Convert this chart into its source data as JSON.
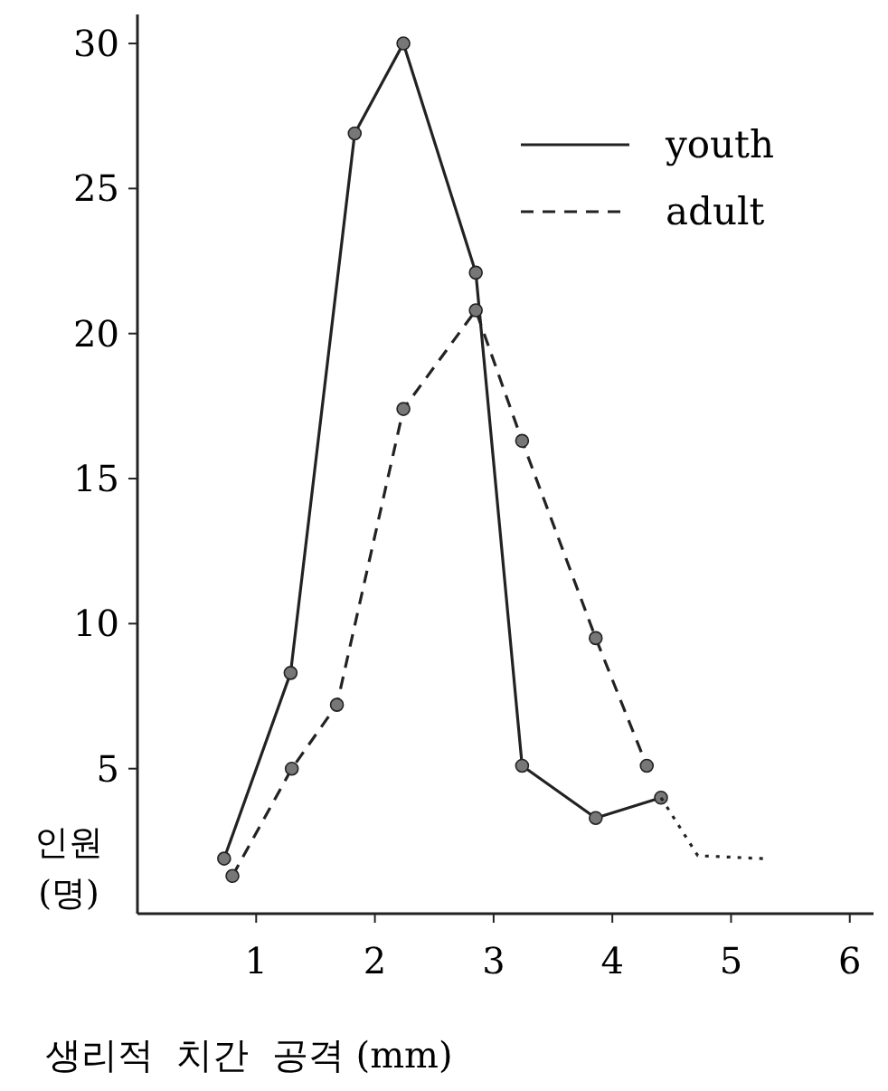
{
  "chart_data": {
    "type": "line",
    "xlabel": "생리적  치간  공격 (mm)",
    "ylabel": "인원 (명)",
    "xlim": [
      0,
      6.2
    ],
    "ylim": [
      0,
      31
    ],
    "xticks": [
      1,
      2,
      3,
      4,
      5,
      6
    ],
    "yticks": [
      5,
      10,
      15,
      20,
      25,
      30
    ],
    "legend": "top right",
    "marker": "circle",
    "grid": false,
    "series": [
      {
        "name": "youth",
        "color": "#222222",
        "line_style": "solid",
        "x": [
          0.73,
          1.29,
          1.83,
          2.24,
          2.85,
          3.24,
          3.86,
          4.41
        ],
        "values": [
          1.9,
          8.3,
          26.9,
          30,
          22.1,
          5.1,
          3.3,
          4
        ]
      },
      {
        "name": "adult",
        "color": "#222222",
        "line_style": "dashed",
        "x": [
          0.8,
          1.3,
          1.68,
          2.24,
          2.85,
          3.24,
          3.86,
          4.29
        ],
        "values": [
          1.3,
          5,
          7.2,
          17.4,
          20.8,
          16.3,
          9.5,
          5.1
        ]
      },
      {
        "color": "#222222",
        "line_style": "dotted",
        "marker": "none",
        "x": [
          4.41,
          4.72,
          5.27
        ],
        "values": [
          4,
          2,
          1.9
        ]
      }
    ]
  }
}
